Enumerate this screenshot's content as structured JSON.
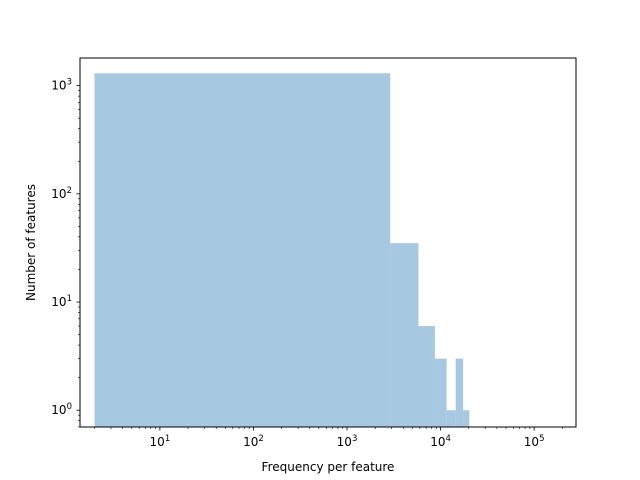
{
  "chart_data": {
    "type": "bar",
    "title": "",
    "xlabel": "Frequency per feature",
    "ylabel": "Number of features",
    "x_scale": "log",
    "y_scale": "log",
    "xlim": [
      1.4,
      280000
    ],
    "ylim": [
      0.7,
      1800
    ],
    "grid": false,
    "legend": "none",
    "bar_color": "#a6c8e0",
    "x_ticks": [
      {
        "value": 10,
        "label": "10",
        "exp": "1"
      },
      {
        "value": 100,
        "label": "10",
        "exp": "2"
      },
      {
        "value": 1000,
        "label": "10",
        "exp": "3"
      },
      {
        "value": 10000,
        "label": "10",
        "exp": "4"
      },
      {
        "value": 100000,
        "label": "10",
        "exp": "5"
      }
    ],
    "y_ticks": [
      {
        "value": 1,
        "label": "10",
        "exp": "0"
      },
      {
        "value": 10,
        "label": "10",
        "exp": "1"
      },
      {
        "value": 100,
        "label": "10",
        "exp": "2"
      },
      {
        "value": 1000,
        "label": "10",
        "exp": "3"
      }
    ],
    "bins": [
      {
        "x0": 2,
        "x1": 2900,
        "count": 1300
      },
      {
        "x0": 2900,
        "x1": 5800,
        "count": 35
      },
      {
        "x0": 5800,
        "x1": 8700,
        "count": 6
      },
      {
        "x0": 8700,
        "x1": 11600,
        "count": 3
      },
      {
        "x0": 11600,
        "x1": 14500,
        "count": 1
      },
      {
        "x0": 14500,
        "x1": 17400,
        "count": 3
      },
      {
        "x0": 17400,
        "x1": 20300,
        "count": 1
      }
    ]
  }
}
